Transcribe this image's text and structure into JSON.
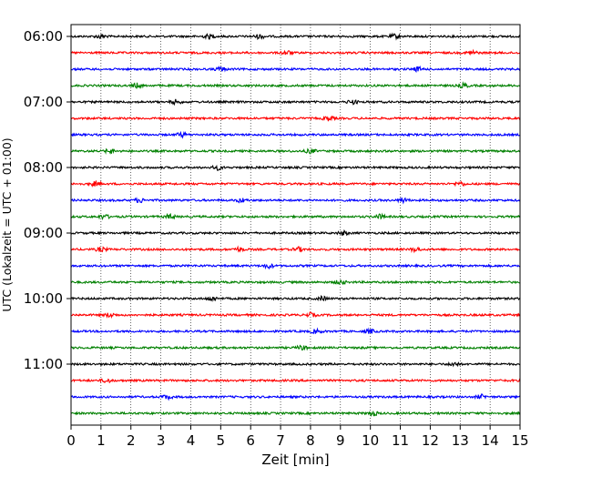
{
  "chart_data": {
    "type": "line",
    "subtype": "helicorder",
    "title": "",
    "xlabel": "Zeit  [min]",
    "ylabel": "UTC (Lokalzeit = UTC + 01:00)",
    "xlim": [
      0,
      15
    ],
    "x_ticks": [
      0,
      1,
      2,
      3,
      4,
      5,
      6,
      7,
      8,
      9,
      10,
      11,
      12,
      13,
      14,
      15
    ],
    "y_ticks": [
      "06:00",
      "07:00",
      "08:00",
      "09:00",
      "10:00",
      "11:00"
    ],
    "grid": "vertical dotted",
    "trace_interval_minutes": 15,
    "trace_start_times": [
      "06:00",
      "06:15",
      "06:30",
      "06:45",
      "07:00",
      "07:15",
      "07:30",
      "07:45",
      "08:00",
      "08:15",
      "08:30",
      "08:45",
      "09:00",
      "09:15",
      "09:30",
      "09:45",
      "10:00",
      "10:15",
      "10:30",
      "10:45",
      "11:00",
      "11:15",
      "11:30",
      "11:45"
    ],
    "trace_colors": [
      "#000000",
      "#ff0000",
      "#0000ff",
      "#008000"
    ],
    "series": [
      {
        "start": "06:00",
        "color": "#000000",
        "event_minutes": [
          1.0,
          4.6,
          6.3,
          10.8
        ]
      },
      {
        "start": "06:15",
        "color": "#ff0000",
        "event_minutes": [
          7.2,
          13.4
        ]
      },
      {
        "start": "06:30",
        "color": "#0000ff",
        "event_minutes": [
          5.0,
          11.6
        ]
      },
      {
        "start": "06:45",
        "color": "#008000",
        "event_minutes": [
          2.2,
          13.1
        ]
      },
      {
        "start": "07:00",
        "color": "#000000",
        "event_minutes": [
          3.5,
          9.4
        ]
      },
      {
        "start": "07:15",
        "color": "#ff0000",
        "event_minutes": [
          8.6
        ]
      },
      {
        "start": "07:30",
        "color": "#0000ff",
        "event_minutes": [
          3.7
        ]
      },
      {
        "start": "07:45",
        "color": "#008000",
        "event_minutes": [
          1.3,
          8.0
        ]
      },
      {
        "start": "08:00",
        "color": "#000000",
        "event_minutes": [
          4.9
        ]
      },
      {
        "start": "08:15",
        "color": "#ff0000",
        "event_minutes": [
          0.8,
          13.0
        ]
      },
      {
        "start": "08:30",
        "color": "#0000ff",
        "event_minutes": [
          2.3,
          5.7,
          11.1
        ]
      },
      {
        "start": "08:45",
        "color": "#008000",
        "event_minutes": [
          1.1,
          3.3,
          10.3
        ]
      },
      {
        "start": "09:00",
        "color": "#000000",
        "event_minutes": [
          9.1
        ]
      },
      {
        "start": "09:15",
        "color": "#ff0000",
        "event_minutes": [
          1.0,
          5.6,
          7.6,
          11.5
        ]
      },
      {
        "start": "09:30",
        "color": "#0000ff",
        "event_minutes": [
          6.6
        ]
      },
      {
        "start": "09:45",
        "color": "#008000",
        "event_minutes": [
          9.0
        ]
      },
      {
        "start": "10:00",
        "color": "#000000",
        "event_minutes": [
          4.7,
          8.4
        ]
      },
      {
        "start": "10:15",
        "color": "#ff0000",
        "event_minutes": [
          1.3,
          8.0
        ]
      },
      {
        "start": "10:30",
        "color": "#0000ff",
        "event_minutes": [
          8.2,
          10.0
        ]
      },
      {
        "start": "10:45",
        "color": "#008000",
        "event_minutes": [
          7.7
        ]
      },
      {
        "start": "11:00",
        "color": "#000000",
        "event_minutes": [
          12.8
        ]
      },
      {
        "start": "11:15",
        "color": "#ff0000",
        "event_minutes": [
          1.2
        ]
      },
      {
        "start": "11:30",
        "color": "#0000ff",
        "event_minutes": [
          3.2,
          13.7
        ]
      },
      {
        "start": "11:45",
        "color": "#008000",
        "event_minutes": [
          10.1
        ]
      }
    ]
  }
}
